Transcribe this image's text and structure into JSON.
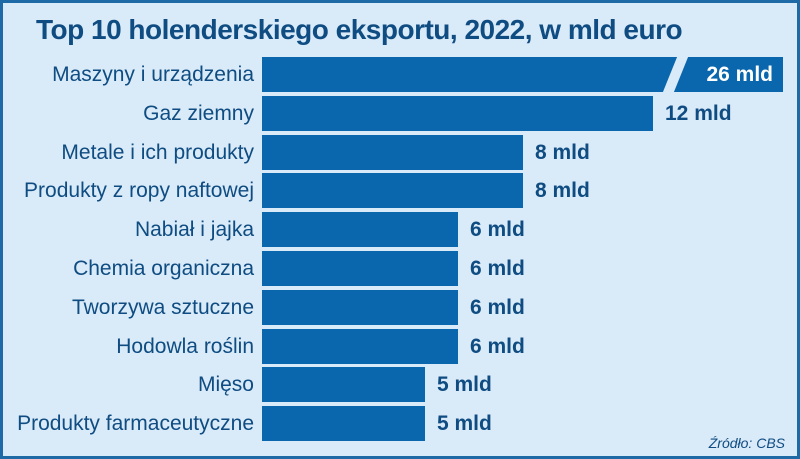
{
  "title": "Top 10 holenderskiego eksportu, 2022, w mld euro",
  "source": "Źródło: CBS",
  "colors": {
    "bar": "#0a67ad",
    "background": "#d9eaf8",
    "frame_border": "#1e6aa6",
    "text": "#0e4c82",
    "value_inside_bar": "#ffffff"
  },
  "chart_data": {
    "type": "bar",
    "orientation": "horizontal",
    "title": "Top 10 holenderskiego eksportu, 2022, w mld euro",
    "unit": "mld euro",
    "categories": [
      "Maszyny i urządzenia",
      "Gaz ziemny",
      "Metale i ich produkty",
      "Produkty z ropy naftowej",
      "Nabiał i jajka",
      "Chemia organiczna",
      "Tworzywa sztuczne",
      "Hodowla roślin",
      "Mięso",
      "Produkty farmaceutyczne"
    ],
    "values": [
      26,
      12,
      8,
      8,
      6,
      6,
      6,
      6,
      5,
      5
    ],
    "value_labels": [
      "26 mld",
      "12 mld",
      "8 mld",
      "8 mld",
      "6 mld",
      "6 mld",
      "6 mld",
      "6 mld",
      "5 mld",
      "5 mld"
    ],
    "xlim": [
      0,
      16
    ],
    "truncated_bar_indices": [
      0
    ],
    "grid": false,
    "legend": false,
    "source": "Źródło: CBS"
  }
}
